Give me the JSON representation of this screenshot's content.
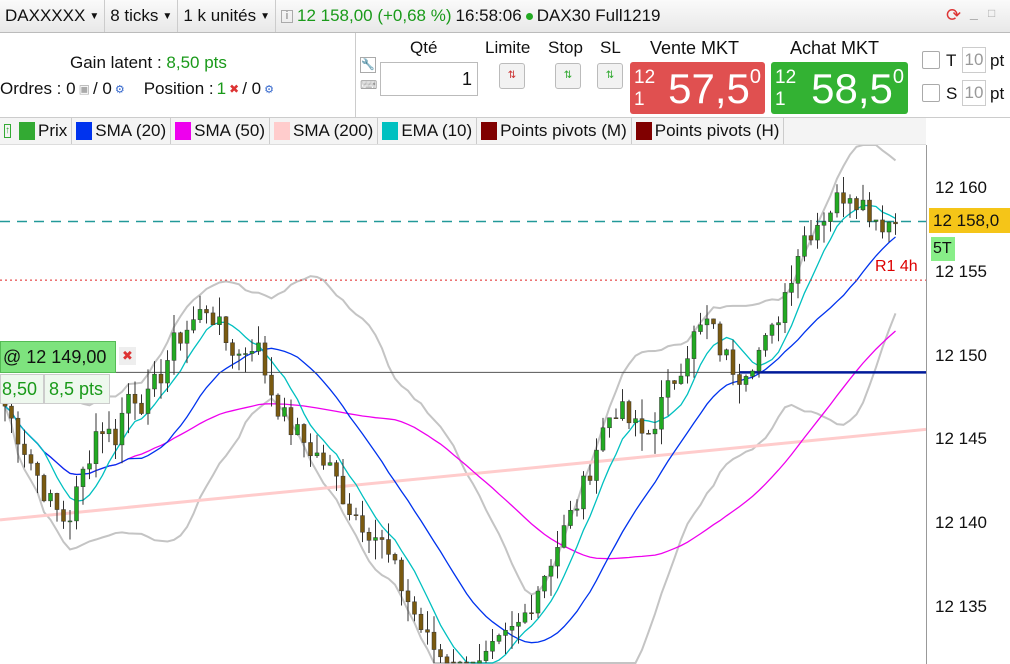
{
  "toolbar": {
    "instrument": "DAXXXXX",
    "ticks": "8 ticks",
    "units": "1 k unités",
    "quote": "12 158,00 (+0,68 %)",
    "time": "16:58:06",
    "market": "DAX30 Full1219"
  },
  "order_panel": {
    "gain_label": "Gain latent :",
    "gain_value": "8,50 pts",
    "orders_label": "Ordres : 0",
    "orders_value": "/ 0",
    "position_label": "Position :",
    "position_count": "1",
    "position_value": "/ 0",
    "qty_label": "Qté",
    "qty_value": "1",
    "limit_label": "Limite",
    "stop_label": "Stop",
    "sl_label": "SL",
    "sell_label": "Vente MKT",
    "sell_prefix": "12 1",
    "sell_big": "57,5",
    "sell_sup": "0",
    "buy_label": "Achat MKT",
    "buy_prefix": "12 1",
    "buy_big": "58,5",
    "buy_sup": "0",
    "t_label": "T",
    "t_value": "10",
    "s_label": "S",
    "s_value": "10",
    "unit": "pt"
  },
  "legend": [
    {
      "label": "Prix",
      "color": "#3a3"
    },
    {
      "label": "SMA (20)",
      "color": "#0033ee"
    },
    {
      "label": "SMA (50)",
      "color": "#ee00ee"
    },
    {
      "label": "SMA (200)",
      "color": "#ffcccc"
    },
    {
      "label": "EMA (10)",
      "color": "#00c0c0"
    },
    {
      "label": "Points pivots (M)",
      "color": "#800000"
    },
    {
      "label": "Points pivots (H)",
      "color": "#800000"
    }
  ],
  "position_tag": {
    "price": "@ 12 149,00",
    "gain": "8,50",
    "gain_pts": "8,5 pts"
  },
  "price_tag": "12 158,0",
  "tag_5t": "5T",
  "pivot_label": "R1 4h",
  "chart_data": {
    "type": "candlestick",
    "yticks": [
      12160,
      12155,
      12150,
      12145,
      12140,
      12135
    ],
    "ylim": [
      12130.6,
      12164
    ],
    "last_price": 12158,
    "pivot_r1_4h": 12154.5,
    "entry_price": 12149,
    "close": [
      12147,
      12145,
      12143,
      12141,
      12140,
      12143,
      12146,
      12145,
      12148,
      12147,
      12149,
      12151,
      12152,
      12153,
      12151,
      12150,
      12151,
      12148,
      12146,
      12145,
      12144,
      12143,
      12141,
      12140,
      12139,
      12137,
      12135,
      12133,
      12132,
      12131,
      12131,
      12132,
      12133,
      12134,
      12136,
      12138,
      12140,
      12142,
      12145,
      12147,
      12146,
      12145,
      12147,
      12149,
      12151,
      12152,
      12150,
      12149,
      12150,
      12151,
      12154,
      12157,
      12158,
      12159,
      12160,
      12159,
      12158,
      12158
    ],
    "sma200": [
      12140.2,
      12145.6
    ]
  },
  "colors": {
    "up": "#22aa22",
    "down": "#7a5a10",
    "sell": "#e05050",
    "buy": "#33b233"
  }
}
